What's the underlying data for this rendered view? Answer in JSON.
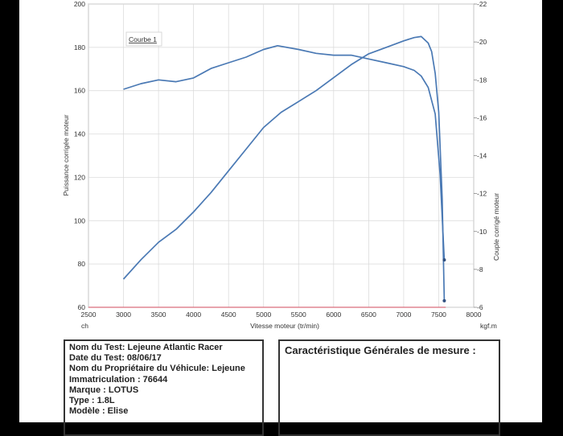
{
  "chart_data": {
    "type": "line",
    "legend_label": "Courbe 1",
    "legend_position": "top-left",
    "grid": true,
    "xlabel": "Vitesse moteur (tr/min)",
    "x_unit_left": "ch",
    "x_unit_right": "kgf.m",
    "ylabel_left": "Puissance corrigée moteur",
    "ylabel_right": "Couple corrigé moteur",
    "xlim": [
      2500,
      8000
    ],
    "ylim_left": [
      60,
      200
    ],
    "ylim_right": [
      6,
      22
    ],
    "x_ticks": [
      "2500",
      "3000",
      "3500",
      "4000",
      "4500",
      "5000",
      "5500",
      "6000",
      "6500",
      "7000",
      "7500",
      "8000"
    ],
    "y_left_ticks": [
      "60",
      "80",
      "100",
      "120",
      "140",
      "160",
      "180",
      "200"
    ],
    "y_right_ticks": [
      "-6",
      "-8",
      "-10",
      "-12",
      "-14",
      "-16",
      "-18",
      "-20",
      "-22"
    ],
    "series": [
      {
        "axis": "left",
        "color": "#4a79b4",
        "x": [
          3000,
          3250,
          3500,
          3750,
          4000,
          4250,
          4500,
          4750,
          5000,
          5250,
          5500,
          5750,
          6000,
          6250,
          6500,
          6750,
          7000,
          7150,
          7250,
          7350,
          7400,
          7450,
          7500,
          7550,
          7580
        ],
        "y": [
          73,
          82,
          90,
          96,
          104,
          113,
          123,
          133,
          143,
          150,
          155,
          160,
          166,
          172,
          177,
          180,
          183,
          184.5,
          185,
          182,
          178,
          168,
          150,
          110,
          63
        ]
      },
      {
        "axis": "right",
        "color": "#4a79b4",
        "x": [
          3000,
          3250,
          3500,
          3750,
          4000,
          4250,
          4500,
          4750,
          5000,
          5200,
          5500,
          5750,
          6000,
          6250,
          6500,
          6750,
          7000,
          7150,
          7250,
          7350,
          7450,
          7520,
          7580
        ],
        "y": [
          17.5,
          17.8,
          18.0,
          17.9,
          18.1,
          18.6,
          18.9,
          19.2,
          19.6,
          19.8,
          19.6,
          19.4,
          19.3,
          19.3,
          19.1,
          18.9,
          18.7,
          18.5,
          18.2,
          17.6,
          16.2,
          13.0,
          8.5
        ]
      },
      {
        "axis": "left",
        "color": "#d96e7c",
        "x": [
          2500,
          7600
        ],
        "y": [
          60,
          60
        ]
      }
    ]
  },
  "info": {
    "lines": [
      "Nom du Test: Lejeune Atlantic Racer",
      "Date du Test: 08/06/17",
      "Nom du Propriétaire du Véhicule: Lejeune",
      "Immatriculation : 76644",
      "Marque : LOTUS",
      "Type : 1.8L",
      "Modèle : Elise"
    ]
  },
  "carac": {
    "title": "Caractéristique Générales de mesure :"
  }
}
